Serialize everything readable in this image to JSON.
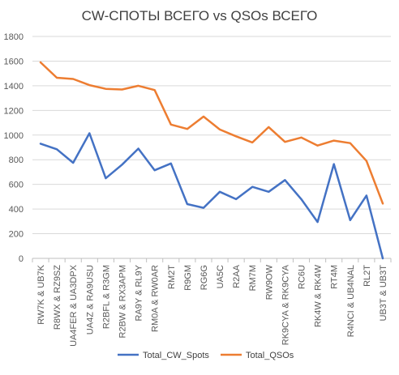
{
  "chart_data": {
    "type": "line",
    "title": "CW-СПОТЫ ВСЕГО vs QSOs ВСЕГО",
    "xlabel": "",
    "ylabel": "",
    "ylim": [
      0,
      1800
    ],
    "yticks": [
      0,
      200,
      400,
      600,
      800,
      1000,
      1200,
      1400,
      1600,
      1800
    ],
    "grid": "horizontal",
    "legend_position": "bottom",
    "categories": [
      "RW7K & UB7K",
      "R8WX & RZ9SZ",
      "UA4FER & UA3DPX",
      "UA4Z & RA9USU",
      "R2BFL & R3GM",
      "R2BW & RX3APM",
      "RA9Y & RL9Y",
      "RM0A & RW0AR",
      "RM2T",
      "R9GM",
      "RG6G",
      "UA5C",
      "R2AA",
      "RM7M",
      "RW9OW",
      "RK9CYA & RK9CYA",
      "RC6U",
      "RK4W & RK4W",
      "RT4M",
      "R4NCI & UB4NAL",
      "RL2T",
      "UB3T & UB3T"
    ],
    "series": [
      {
        "name": "Total_CW_Spots",
        "color": "#4472c4",
        "values": [
          930,
          885,
          775,
          1015,
          650,
          760,
          890,
          715,
          770,
          440,
          410,
          540,
          480,
          580,
          540,
          635,
          480,
          295,
          765,
          310,
          510,
          0
        ]
      },
      {
        "name": "Total_QSOs",
        "color": "#ed7d31",
        "values": [
          1590,
          1465,
          1455,
          1405,
          1375,
          1370,
          1400,
          1365,
          1085,
          1050,
          1150,
          1045,
          990,
          940,
          1065,
          945,
          980,
          915,
          955,
          935,
          790,
          445
        ]
      }
    ]
  }
}
